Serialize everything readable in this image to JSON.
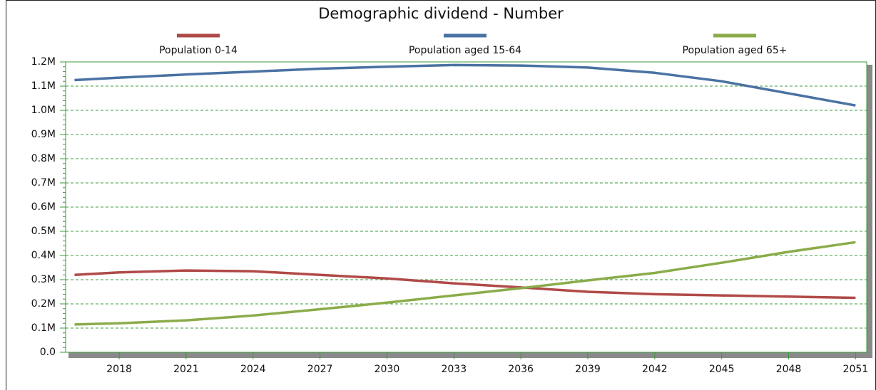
{
  "chart_data": {
    "type": "line",
    "title": "Demographic dividend - Number",
    "x": [
      2016,
      2018,
      2021,
      2024,
      2027,
      2030,
      2033,
      2036,
      2039,
      2042,
      2045,
      2048,
      2051
    ],
    "series": [
      {
        "name": "Population 0-14",
        "color": "#b04a48",
        "values": [
          320000,
          330000,
          338000,
          335000,
          320000,
          305000,
          285000,
          268000,
          250000,
          240000,
          235000,
          230000,
          225000
        ]
      },
      {
        "name": "Population aged 15-64",
        "color": "#4a72a3",
        "values": [
          1125000,
          1135000,
          1148000,
          1160000,
          1172000,
          1180000,
          1187000,
          1185000,
          1177000,
          1155000,
          1120000,
          1070000,
          1020000
        ]
      },
      {
        "name": "Population aged 65+",
        "color": "#8aac4a",
        "values": [
          115000,
          120000,
          132000,
          152000,
          178000,
          205000,
          235000,
          265000,
          297000,
          328000,
          370000,
          415000,
          455000
        ]
      }
    ],
    "xlim": [
      2015.6,
      2051.5
    ],
    "xticks": [
      2018,
      2021,
      2024,
      2027,
      2030,
      2033,
      2036,
      2039,
      2042,
      2045,
      2048,
      2051
    ],
    "ylim": [
      0,
      1200000
    ],
    "yticks": [
      {
        "value": 0,
        "label": "0.0"
      },
      {
        "value": 100000,
        "label": "0.1M"
      },
      {
        "value": 200000,
        "label": "0.2M"
      },
      {
        "value": 300000,
        "label": "0.3M"
      },
      {
        "value": 400000,
        "label": "0.4M"
      },
      {
        "value": 500000,
        "label": "0.5M"
      },
      {
        "value": 600000,
        "label": "0.6M"
      },
      {
        "value": 700000,
        "label": "0.7M"
      },
      {
        "value": 800000,
        "label": "0.8M"
      },
      {
        "value": 900000,
        "label": "0.9M"
      },
      {
        "value": 1000000,
        "label": "1.0M"
      },
      {
        "value": 1100000,
        "label": "1.1M"
      },
      {
        "value": 1200000,
        "label": "1.2M"
      }
    ],
    "grid": true
  }
}
